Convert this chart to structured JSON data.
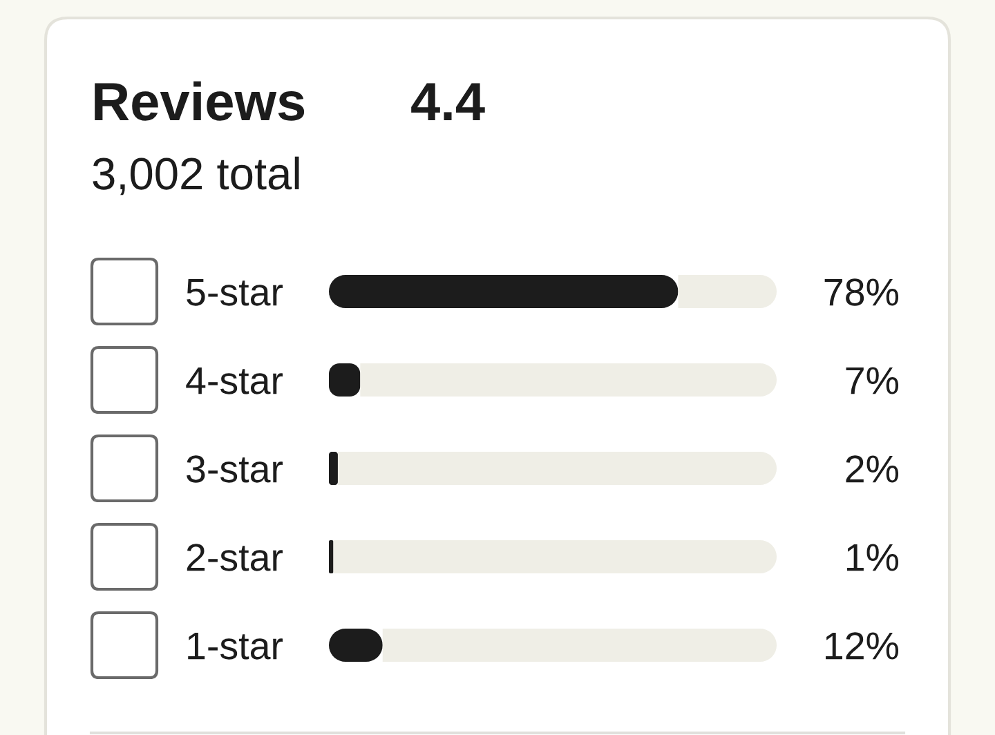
{
  "chart_data": {
    "type": "bar",
    "orientation": "horizontal",
    "stacked": true,
    "title": "Reviews",
    "subtitle": "3,002 total",
    "annotations": [
      "4.4"
    ],
    "categories": [
      "5-star",
      "4-star",
      "3-star",
      "2-star",
      "1-star"
    ],
    "series": [
      {
        "color": "#1c1c1c",
        "values": [
          78,
          7,
          2,
          1,
          12
        ],
        "value_labels": [
          "78%",
          "7%",
          "2%",
          "1%",
          "12%"
        ]
      },
      {
        "color": "#efeee6",
        "values": [
          22,
          93,
          98,
          99,
          88
        ]
      }
    ],
    "xlim": [
      0,
      100
    ],
    "tick_labels": "y"
  }
}
